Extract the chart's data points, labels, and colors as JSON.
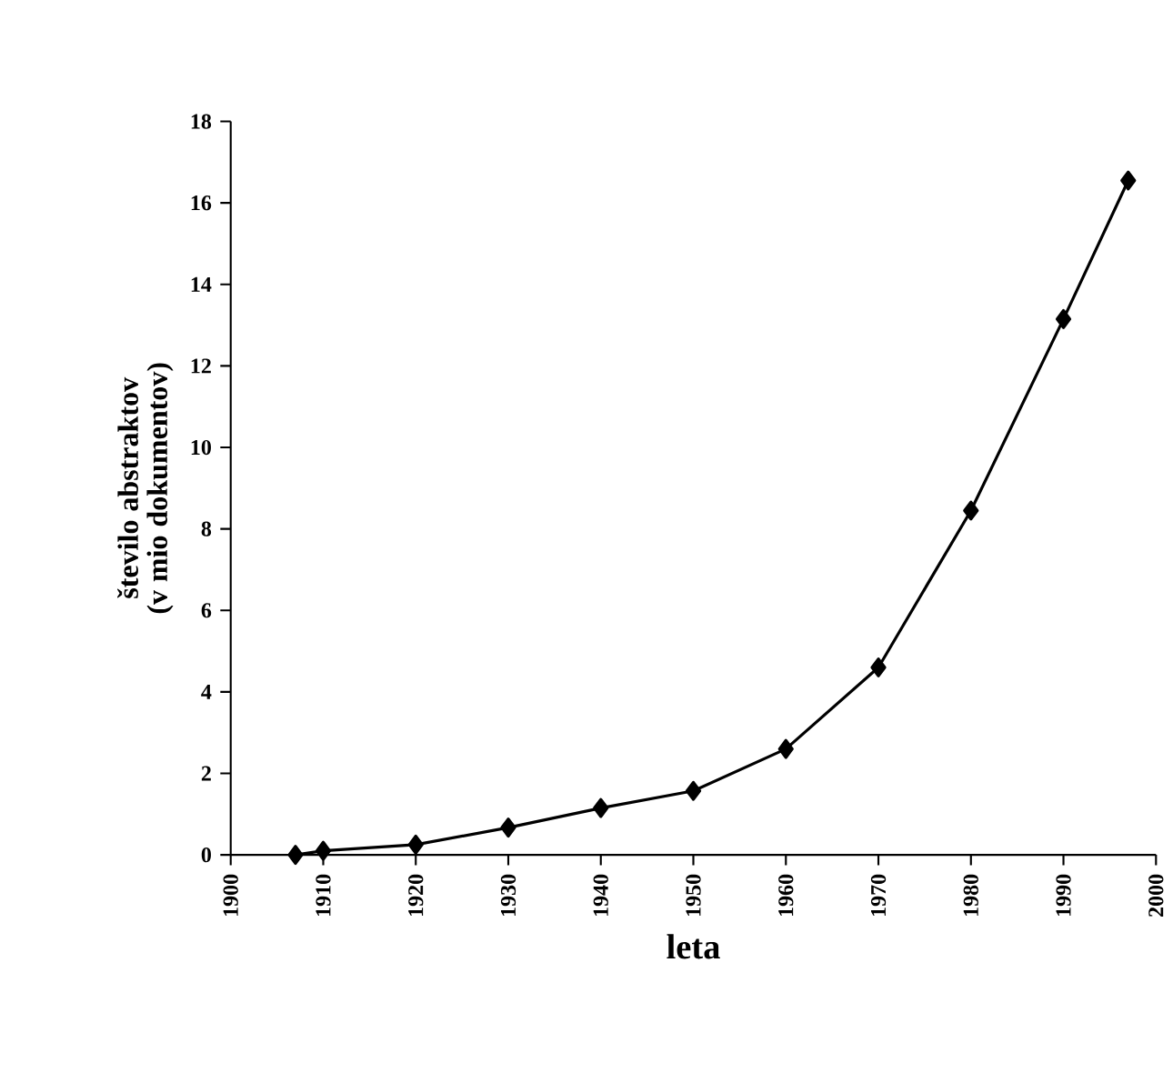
{
  "chart_data": {
    "type": "line",
    "xlabel": "leta",
    "ylabel": "število abstraktov (v mio dokumentov)",
    "x": [
      1907,
      1910,
      1920,
      1930,
      1940,
      1950,
      1960,
      1970,
      1980,
      1990,
      1997
    ],
    "series": [
      {
        "color": "#000000",
        "values": [
          0.0,
          0.1,
          0.25,
          0.67,
          1.15,
          1.57,
          2.6,
          4.6,
          8.45,
          13.15,
          16.55
        ]
      }
    ],
    "xlim": [
      1900,
      2000
    ],
    "xticks": [
      1900,
      1910,
      1920,
      1930,
      1940,
      1950,
      1960,
      1970,
      1980,
      1990,
      2000
    ],
    "ylim": [
      0,
      18
    ],
    "yticks": [
      0,
      2,
      4,
      6,
      8,
      10,
      12,
      14,
      16,
      18
    ],
    "grid": false,
    "marker": "diamond",
    "line_style": "solid"
  }
}
